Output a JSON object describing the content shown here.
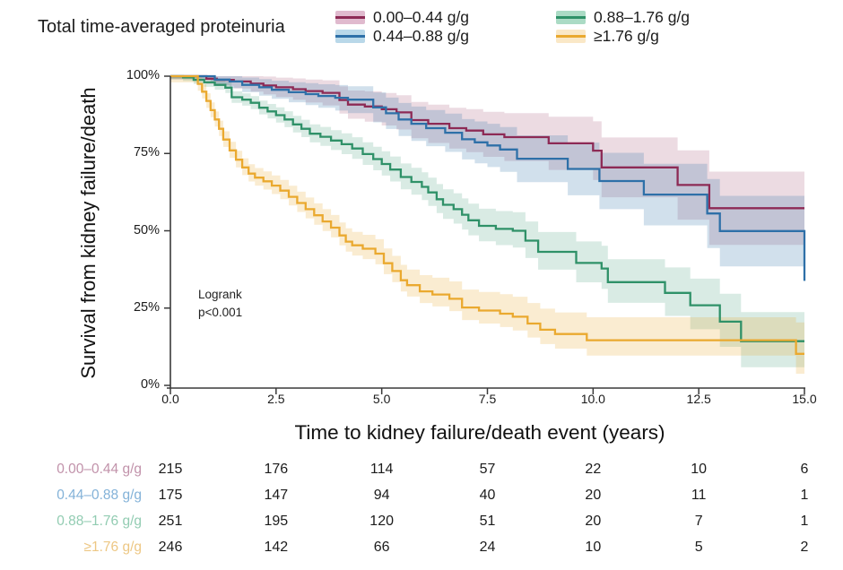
{
  "legend": {
    "title": "Total time-averaged proteinuria"
  },
  "chart_data": {
    "type": "line",
    "subtype": "kaplan_meier_step_with_ci_bands",
    "xlabel": "Time to kidney failure/death event (years)",
    "ylabel": "Survival from kidney failure/death",
    "xlim": [
      0,
      15
    ],
    "ylim": [
      0,
      100
    ],
    "xticks": [
      0,
      2.5,
      5,
      7.5,
      10,
      12.5,
      15
    ],
    "xtick_labels": [
      "0.0",
      "2.5",
      "5.0",
      "7.5",
      "10.0",
      "12.5",
      "15.0"
    ],
    "yticks": [
      0,
      25,
      50,
      75,
      100
    ],
    "ytick_labels": [
      "0%",
      "25%",
      "50%",
      "75%",
      "100%"
    ],
    "grid": false,
    "legend_position": "top",
    "annotations": [
      "Logrank",
      "p<0.001"
    ],
    "series": [
      {
        "name": "0.00–0.44 g/g",
        "color": "#8D2A55",
        "swatch_fill": "#E0BACE",
        "band_opacity": 0.17,
        "band": {
          "up0": 1,
          "up_per_year": 0.85,
          "dn0": 1,
          "dn_per_year": 0.85
        },
        "points_t_pct": [
          [
            0,
            100
          ],
          [
            0.78,
            100
          ],
          [
            0.85,
            99.2
          ],
          [
            1.1,
            98.8
          ],
          [
            1.5,
            98.3
          ],
          [
            1.9,
            97.6
          ],
          [
            2.2,
            97.0
          ],
          [
            2.5,
            96.4
          ],
          [
            2.9,
            95.8
          ],
          [
            3.2,
            95.2
          ],
          [
            3.6,
            94.6
          ],
          [
            4.0,
            92.3
          ],
          [
            4.2,
            90.8
          ],
          [
            4.6,
            90.2
          ],
          [
            5.0,
            89.3
          ],
          [
            5.35,
            88.3
          ],
          [
            5.7,
            85.8
          ],
          [
            6.1,
            84.6
          ],
          [
            6.6,
            83.2
          ],
          [
            7.0,
            82.4
          ],
          [
            7.4,
            81.2
          ],
          [
            7.9,
            80.3
          ],
          [
            8.95,
            78.3
          ],
          [
            10.0,
            75.9
          ],
          [
            10.2,
            70.5
          ],
          [
            12.0,
            64.8
          ],
          [
            12.75,
            57.3
          ],
          [
            15,
            57.3
          ]
        ]
      },
      {
        "name": "0.44–0.88 g/g",
        "color": "#2E70A8",
        "swatch_fill": "#B9D8E9",
        "band_opacity": 0.22,
        "band": {
          "up0": 1,
          "up_per_year": 0.8,
          "dn0": 1,
          "dn_per_year": 0.8
        },
        "points_t_pct": [
          [
            0,
            100
          ],
          [
            0.95,
            100
          ],
          [
            1.05,
            98.9
          ],
          [
            1.4,
            98.3
          ],
          [
            1.7,
            97.2
          ],
          [
            2.1,
            96.4
          ],
          [
            2.4,
            95.6
          ],
          [
            2.8,
            94.8
          ],
          [
            3.2,
            94.2
          ],
          [
            3.5,
            93.6
          ],
          [
            3.9,
            93.0
          ],
          [
            4.2,
            92.4
          ],
          [
            4.8,
            89.9
          ],
          [
            5.1,
            88.0
          ],
          [
            5.4,
            86.0
          ],
          [
            5.7,
            84.6
          ],
          [
            6.05,
            83.2
          ],
          [
            6.5,
            81.7
          ],
          [
            6.9,
            79.6
          ],
          [
            7.2,
            78.6
          ],
          [
            7.5,
            77.6
          ],
          [
            7.8,
            76.3
          ],
          [
            8.2,
            73.3
          ],
          [
            9.4,
            70.0
          ],
          [
            10.15,
            66.1
          ],
          [
            11.2,
            61.7
          ],
          [
            12.7,
            55.6
          ],
          [
            13.0,
            49.9
          ],
          [
            15,
            49.9
          ],
          [
            15,
            33.8
          ]
        ]
      },
      {
        "name": "0.88–1.76 g/g",
        "color": "#2F9168",
        "swatch_fill": "#ABDBC5",
        "band_opacity": 0.18,
        "band": {
          "up0": 1,
          "up_per_year": 0.62,
          "dn0": 1,
          "dn_per_year": 0.55
        },
        "points_t_pct": [
          [
            0,
            100
          ],
          [
            0.3,
            99.6
          ],
          [
            0.55,
            98.8
          ],
          [
            0.8,
            98.0
          ],
          [
            1.05,
            97.2
          ],
          [
            1.3,
            96.3
          ],
          [
            1.45,
            93.2
          ],
          [
            1.7,
            92.4
          ],
          [
            1.9,
            91.4
          ],
          [
            2.1,
            89.8
          ],
          [
            2.3,
            88.6
          ],
          [
            2.5,
            87.4
          ],
          [
            2.7,
            86.0
          ],
          [
            2.9,
            84.4
          ],
          [
            3.1,
            83.0
          ],
          [
            3.3,
            81.4
          ],
          [
            3.55,
            80.4
          ],
          [
            3.8,
            79.2
          ],
          [
            4.05,
            78.0
          ],
          [
            4.3,
            76.6
          ],
          [
            4.55,
            74.8
          ],
          [
            4.8,
            73.2
          ],
          [
            5.0,
            71.6
          ],
          [
            5.2,
            69.8
          ],
          [
            5.45,
            67.4
          ],
          [
            5.7,
            65.8
          ],
          [
            5.95,
            64.2
          ],
          [
            6.1,
            62.4
          ],
          [
            6.3,
            60.2
          ],
          [
            6.45,
            58.4
          ],
          [
            6.7,
            57.0
          ],
          [
            6.9,
            55.2
          ],
          [
            7.05,
            53.4
          ],
          [
            7.3,
            51.6
          ],
          [
            7.7,
            50.6
          ],
          [
            8.1,
            50.0
          ],
          [
            8.4,
            46.8
          ],
          [
            8.7,
            43.2
          ],
          [
            9.6,
            39.6
          ],
          [
            10.2,
            37.8
          ],
          [
            10.35,
            33.4
          ],
          [
            11.7,
            29.9
          ],
          [
            12.3,
            25.9
          ],
          [
            13.0,
            20.6
          ],
          [
            13.5,
            14.3
          ],
          [
            15,
            14.3
          ]
        ]
      },
      {
        "name": "≥1.76 g/g",
        "color": "#EAA92F",
        "swatch_fill": "#FAE8C7",
        "band_opacity": 0.22,
        "band": {
          "up0": 2,
          "up_per_year": 0.55,
          "dn0": 2,
          "dn_per_year": 0.3
        },
        "points_t_pct": [
          [
            0,
            100
          ],
          [
            0.58,
            100
          ],
          [
            0.65,
            97.5
          ],
          [
            0.75,
            95.0
          ],
          [
            0.85,
            92.0
          ],
          [
            0.95,
            89.0
          ],
          [
            1.05,
            86.0
          ],
          [
            1.15,
            83.0
          ],
          [
            1.25,
            79.5
          ],
          [
            1.4,
            76.0
          ],
          [
            1.55,
            73.0
          ],
          [
            1.7,
            70.5
          ],
          [
            1.85,
            68.5
          ],
          [
            2.0,
            67.2
          ],
          [
            2.2,
            66.0
          ],
          [
            2.4,
            64.6
          ],
          [
            2.6,
            63.0
          ],
          [
            2.8,
            61.0
          ],
          [
            3.0,
            59.0
          ],
          [
            3.2,
            57.0
          ],
          [
            3.4,
            55.0
          ],
          [
            3.6,
            53.0
          ],
          [
            3.8,
            51.0
          ],
          [
            4.0,
            48.5
          ],
          [
            4.15,
            46.5
          ],
          [
            4.3,
            45.3
          ],
          [
            4.55,
            44.2
          ],
          [
            4.85,
            42.6
          ],
          [
            5.05,
            39.5
          ],
          [
            5.25,
            37.0
          ],
          [
            5.45,
            34.0
          ],
          [
            5.6,
            32.4
          ],
          [
            5.9,
            30.4
          ],
          [
            6.2,
            29.4
          ],
          [
            6.6,
            28.0
          ],
          [
            6.9,
            25.2
          ],
          [
            7.3,
            24.2
          ],
          [
            7.8,
            23.2
          ],
          [
            8.1,
            22.2
          ],
          [
            8.45,
            20.0
          ],
          [
            8.75,
            18.0
          ],
          [
            9.1,
            16.6
          ],
          [
            9.85,
            14.6
          ],
          [
            14.8,
            14.6
          ],
          [
            14.8,
            10.2
          ],
          [
            15,
            10.2
          ]
        ]
      }
    ]
  },
  "risk_table": {
    "times": [
      0,
      2.5,
      5,
      7.5,
      10,
      12.5,
      15
    ],
    "rows": [
      {
        "label": "0.00–0.44 g/g",
        "label_color": "#C192AA",
        "counts": [
          "215",
          "176",
          "114",
          "57",
          "22",
          "10",
          "6"
        ]
      },
      {
        "label": "0.44–0.88 g/g",
        "label_color": "#83B2D8",
        "counts": [
          "175",
          "147",
          "94",
          "40",
          "20",
          "11",
          "1"
        ]
      },
      {
        "label": "0.88–1.76 g/g",
        "label_color": "#92CCB2",
        "counts": [
          "251",
          "195",
          "120",
          "51",
          "20",
          "7",
          "1"
        ]
      },
      {
        "label": "≥1.76 g/g",
        "label_color": "#EDC784",
        "counts": [
          "246",
          "142",
          "66",
          "24",
          "10",
          "5",
          "2"
        ]
      }
    ]
  }
}
